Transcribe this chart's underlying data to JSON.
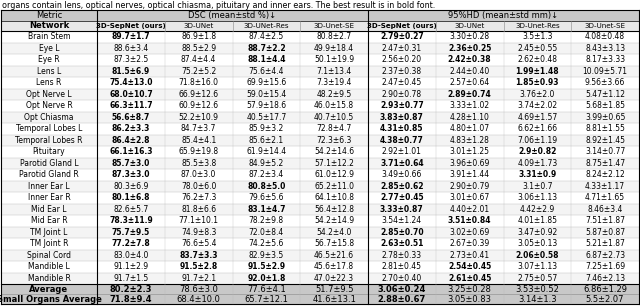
{
  "caption": "organs contain lens, optical nerves, optical chiasma, pituitary and inner ears. The best result is in bold font.",
  "rows": [
    [
      "Brain Stem",
      "89.7±1.7",
      "86.9±1.8",
      "87.4±2.5",
      "80.8±2.7",
      "2.79±0.27",
      "3.30±0.28",
      "3.5±1.3",
      "4.08±0.48"
    ],
    [
      "Eye L",
      "88.6±3.4",
      "88.5±2.9",
      "88.7±2.2",
      "49.9±18.4",
      "2.47±0.31",
      "2.36±0.25",
      "2.45±0.55",
      "8.43±3.13"
    ],
    [
      "Eye R",
      "87.3±2.5",
      "87.4±4.4",
      "88.1±4.4",
      "50.1±19.9",
      "2.56±0.20",
      "2.42±0.38",
      "2.62±0.48",
      "8.17±3.33"
    ],
    [
      "Lens L",
      "81.5±6.9",
      "75.2±5.2",
      "75.6±4.4",
      "7.1±13.4",
      "2.37±0.38",
      "2.44±0.40",
      "1.99±1.48",
      "10.09±5.71"
    ],
    [
      "Lens R",
      "75.4±13.0",
      "71.8±16.0",
      "69.9±15.6",
      "7.3±19.4",
      "2.47±0.45",
      "2.57±0.64",
      "1.85±0.93",
      "9.56±3.66"
    ],
    [
      "Opt Nerve L",
      "68.0±10.7",
      "66.9±12.6",
      "59.0±15.4",
      "48.2±9.5",
      "2.90±0.78",
      "2.89±0.74",
      "3.76±2.0",
      "5.47±1.12"
    ],
    [
      "Opt Nerve R",
      "66.3±11.7",
      "60.9±12.6",
      "57.9±18.6",
      "46.0±15.8",
      "2.93±0.77",
      "3.33±1.02",
      "3.74±2.02",
      "5.68±1.85"
    ],
    [
      "Opt Chiasma",
      "56.6±8.7",
      "52.2±10.9",
      "40.5±17.7",
      "40.7±10.5",
      "3.83±0.87",
      "4.28±1.10",
      "4.69±1.57",
      "3.99±0.65"
    ],
    [
      "Temporal Lobes L",
      "86.2±3.3",
      "84.7±3.7",
      "85.9±3.2",
      "72.8±4.7",
      "4.31±0.85",
      "4.80±1.07",
      "6.62±1.66",
      "8.81±1.55"
    ],
    [
      "Temporal Lobes R",
      "86.4±2.8",
      "85.4±4.1",
      "85.6±2.1",
      "72.3±6.3",
      "4.38±0.77",
      "4.83±1.28",
      "7.06±1.19",
      "8.92±1.45"
    ],
    [
      "Pituitary",
      "66.1±16.3",
      "65.9±19.8",
      "61.9±14.4",
      "54.2±14.6",
      "2.92±1.01",
      "3.01±1.25",
      "2.9±0.82",
      "3.14±0.77"
    ],
    [
      "Parotid Gland L",
      "85.7±3.0",
      "85.5±3.8",
      "84.9±5.2",
      "57.1±12.2",
      "3.71±0.64",
      "3.96±0.69",
      "4.09±1.73",
      "8.75±1.47"
    ],
    [
      "Parotid Gland R",
      "87.3±3.0",
      "87.0±3.0",
      "87.2±3.4",
      "61.0±12.9",
      "3.49±0.66",
      "3.91±1.44",
      "3.31±0.9",
      "8.24±2.12"
    ],
    [
      "Inner Ear L",
      "80.3±6.9",
      "78.0±6.0",
      "80.8±5.0",
      "65.2±11.0",
      "2.85±0.62",
      "2.90±0.79",
      "3.1±0.7",
      "4.33±1.17"
    ],
    [
      "Inner Ear R",
      "80.1±6.8",
      "76.2±7.3",
      "79.6±5.6",
      "64.1±10.8",
      "2.77±0.45",
      "3.01±0.67",
      "3.06±1.13",
      "4.71±1.65"
    ],
    [
      "Mid Ear L",
      "82.6±5.7",
      "81.8±6.6",
      "83.1±4.7",
      "56.4±12.8",
      "3.33±0.87",
      "4.40±2.01",
      "4.42±2.9",
      "8.46±3.4"
    ],
    [
      "Mid Ear R",
      "78.3±11.9",
      "77.1±10.1",
      "78.2±9.8",
      "54.2±14.9",
      "3.54±1.24",
      "3.51±0.84",
      "4.01±1.85",
      "7.51±1.87"
    ],
    [
      "TM Joint L",
      "75.7±9.5",
      "74.9±8.3",
      "72.0±8.4",
      "54.2±4.0",
      "2.85±0.70",
      "3.02±0.69",
      "3.47±0.92",
      "5.87±0.87"
    ],
    [
      "TM Joint R",
      "77.2±7.8",
      "76.6±5.4",
      "74.2±5.6",
      "56.7±15.8",
      "2.63±0.51",
      "2.67±0.39",
      "3.05±0.13",
      "5.21±1.87"
    ],
    [
      "Spinal Cord",
      "83.0±4.0",
      "83.7±3.3",
      "82.9±3.5",
      "46.5±21.6",
      "2.78±0.33",
      "2.73±0.41",
      "2.06±0.58",
      "6.87±2.73"
    ],
    [
      "Mandible L",
      "91.1±2.9",
      "91.5±2.8",
      "91.5±2.9",
      "45.6±17.8",
      "2.81±0.45",
      "2.54±0.45",
      "3.07±1.13",
      "7.25±1.69"
    ],
    [
      "Mandible R",
      "91.7±1.5",
      "91.7±2.1",
      "92.0±1.8",
      "47.0±22.3",
      "2.70±0.40",
      "2.61±0.45",
      "2.75±0.57",
      "7.46±2.13"
    ]
  ],
  "avg_row": [
    "Average",
    "80.2±2.3",
    "78.6±3.0",
    "77.6±4.1",
    "51.7±9.5",
    "3.06±0.24",
    "3.25±0.28",
    "3.53±0.52",
    "6.86±1.29"
  ],
  "small_org_row": [
    "Small Organs Average",
    "71.8±9.4",
    "68.4±10.0",
    "65.7±12.1",
    "41.6±13.1",
    "2.88±0.67",
    "3.05±0.83",
    "3.14±1.3",
    "5.5±2.07"
  ],
  "dsc_bold": [
    [
      0
    ],
    [
      2
    ],
    [
      2
    ],
    [
      0
    ],
    [
      0
    ],
    [
      0
    ],
    [
      0
    ],
    [
      0
    ],
    [
      0
    ],
    [
      0
    ],
    [
      0
    ],
    [
      0
    ],
    [
      0
    ],
    [
      2
    ],
    [
      0
    ],
    [
      2
    ],
    [
      0
    ],
    [
      0
    ],
    [
      0
    ],
    [
      1
    ],
    [
      1,
      2
    ],
    [
      2
    ]
  ],
  "hd_bold": [
    [
      0
    ],
    [
      1
    ],
    [
      1
    ],
    [
      2
    ],
    [
      2
    ],
    [
      1
    ],
    [
      0
    ],
    [
      0
    ],
    [
      0
    ],
    [
      0
    ],
    [
      2
    ],
    [
      0
    ],
    [
      2
    ],
    [
      0
    ],
    [
      0
    ],
    [
      0
    ],
    [
      1
    ],
    [
      0
    ],
    [
      0
    ],
    [
      2
    ],
    [
      1
    ],
    [
      1
    ]
  ],
  "avg_dsc_bold": [
    0
  ],
  "avg_hd_bold": [
    0
  ],
  "small_dsc_bold": [
    0
  ],
  "small_hd_bold": [
    0
  ],
  "sub_names_dsc": [
    "3D-SepNet (ours)",
    "3D-UNet",
    "3D-UNet-Res",
    "3D-Unet-SE"
  ],
  "sub_names_hd": [
    "3D-SepNet (ours)",
    "3D-UNet",
    "3D-Unet-Res",
    "3D-Unet-SE"
  ],
  "bg_color": "#ffffff",
  "header_bg": "#c8c8c8",
  "subheader_bg": "#e8e8e8",
  "avg_bg": "#c8c8c8"
}
